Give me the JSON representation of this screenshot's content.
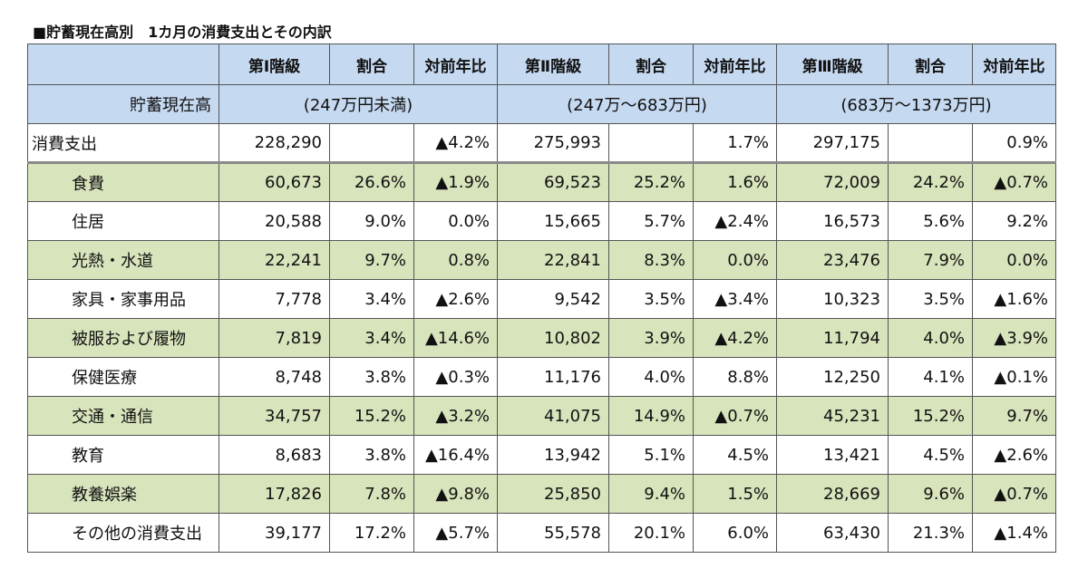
{
  "title": "■貯蓄現在高別　1カ月の消費支出とその内訳",
  "header": {
    "col_group_labels": [
      "第Ⅰ階級",
      "第Ⅱ階級",
      "第Ⅲ階級"
    ],
    "share_label": "割合",
    "yoy_label": "対前年比"
  },
  "savings_row": {
    "label": "貯蓄現在高",
    "ranges": [
      "(247万円未満)",
      "(247万～683万円)",
      "(683万～1373万円)"
    ]
  },
  "total_row": {
    "label": "消費支出",
    "cells": [
      "228,290",
      "",
      "▲4.2%",
      "275,993",
      "",
      "1.7%",
      "297,175",
      "",
      "0.9%"
    ]
  },
  "rows": [
    {
      "label": "食費",
      "cells": [
        "60,673",
        "26.6%",
        "▲1.9%",
        "69,523",
        "25.2%",
        "1.6%",
        "72,009",
        "24.2%",
        "▲0.7%"
      ]
    },
    {
      "label": "住居",
      "cells": [
        "20,588",
        "9.0%",
        "0.0%",
        "15,665",
        "5.7%",
        "▲2.4%",
        "16,573",
        "5.6%",
        "9.2%"
      ]
    },
    {
      "label": "光熱・水道",
      "cells": [
        "22,241",
        "9.7%",
        "0.8%",
        "22,841",
        "8.3%",
        "0.0%",
        "23,476",
        "7.9%",
        "0.0%"
      ]
    },
    {
      "label": "家具・家事用品",
      "cells": [
        "7,778",
        "3.4%",
        "▲2.6%",
        "9,542",
        "3.5%",
        "▲3.4%",
        "10,323",
        "3.5%",
        "▲1.6%"
      ]
    },
    {
      "label": "被服および履物",
      "cells": [
        "7,819",
        "3.4%",
        "▲14.6%",
        "10,802",
        "3.9%",
        "▲4.2%",
        "11,794",
        "4.0%",
        "▲3.9%"
      ]
    },
    {
      "label": "保健医療",
      "cells": [
        "8,748",
        "3.8%",
        "▲0.3%",
        "11,176",
        "4.0%",
        "8.8%",
        "12,250",
        "4.1%",
        "▲0.1%"
      ]
    },
    {
      "label": "交通・通信",
      "cells": [
        "34,757",
        "15.2%",
        "▲3.2%",
        "41,075",
        "14.9%",
        "▲0.7%",
        "45,231",
        "15.2%",
        "9.7%"
      ]
    },
    {
      "label": "教育",
      "cells": [
        "8,683",
        "3.8%",
        "▲16.4%",
        "13,942",
        "5.1%",
        "4.5%",
        "13,421",
        "4.5%",
        "▲2.6%"
      ]
    },
    {
      "label": "教養娯楽",
      "cells": [
        "17,826",
        "7.8%",
        "▲9.8%",
        "25,850",
        "9.4%",
        "1.5%",
        "28,669",
        "9.6%",
        "▲0.7%"
      ]
    },
    {
      "label": "その他の消費支出",
      "cells": [
        "39,177",
        "17.2%",
        "▲5.7%",
        "55,578",
        "20.1%",
        "6.0%",
        "63,430",
        "21.3%",
        "▲1.4%"
      ]
    }
  ],
  "colors": {
    "header_bg": "#c5d9f1",
    "green_row_bg": "#d8e4bc",
    "border": "#555555"
  }
}
